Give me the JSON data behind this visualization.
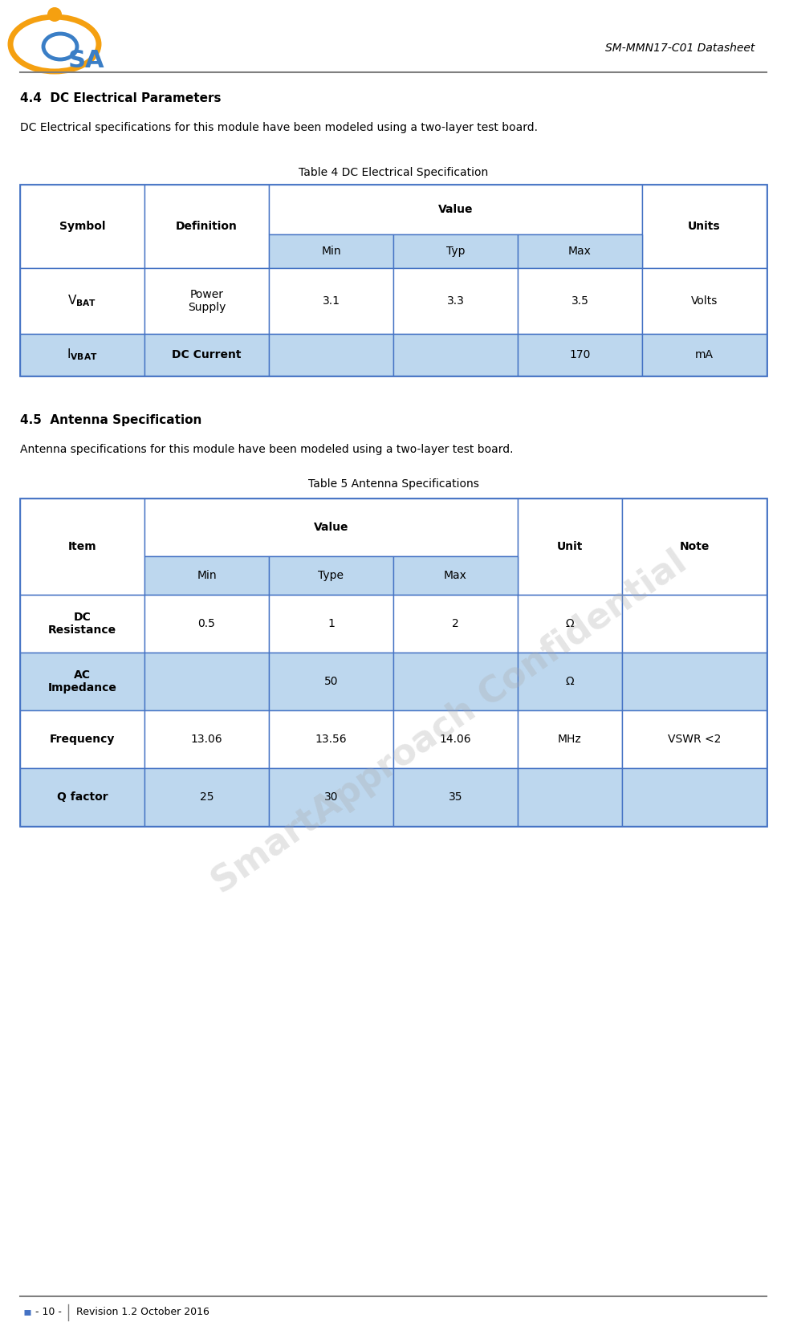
{
  "page_title": "SM-MMN17-C01 Datasheet",
  "section_44_title": "4.4  DC Electrical Parameters",
  "section_44_body": "DC Electrical specifications for this module have been modeled using a two-layer test board.",
  "table4_title": "Table 4 DC Electrical Specification",
  "section_45_title": "4.5  Antenna Specification",
  "section_45_body": "Antenna specifications for this module have been modeled using a two-layer test board.",
  "table5_title": "Table 5 Antenna Specifications",
  "table5_data": [
    [
      "DC\nResistance",
      "0.5",
      "1",
      "2",
      "Ω",
      ""
    ],
    [
      "AC\nImpedance",
      "",
      "50",
      "",
      "Ω",
      ""
    ],
    [
      "Frequency",
      "13.06",
      "13.56",
      "14.06",
      "MHz",
      "VSWR <2"
    ],
    [
      "Q factor",
      "25",
      "30",
      "35",
      "",
      ""
    ]
  ],
  "footer_page": "- 10 -",
  "footer_text": "Revision 1.2 October 2016",
  "subheader_color": "#BDD7EE",
  "row_alt_color": "#BDD7EE",
  "row_white": "#FFFFFF",
  "border_color": "#4472C4",
  "background_color": "#FFFFFF",
  "watermark_text": "SmartApproach Confidential",
  "logo_orange": "#F5A010",
  "logo_blue": "#3A7EC6"
}
